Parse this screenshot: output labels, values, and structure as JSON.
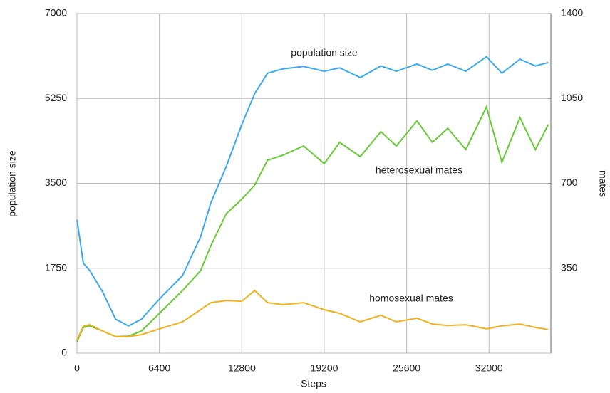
{
  "chart_data": {
    "type": "line",
    "xlabel": "Steps",
    "ylabel": "population size",
    "y2label": "mates",
    "x": [
      0,
      500,
      1000,
      2000,
      3000,
      4000,
      5000,
      6400,
      8200,
      9600,
      10400,
      11600,
      12800,
      13800,
      14800,
      16000,
      17600,
      19200,
      20400,
      22000,
      23600,
      24800,
      26400,
      27600,
      28800,
      30200,
      31800,
      33000,
      34400,
      35600,
      36600
    ],
    "series": [
      {
        "name": "population size",
        "color": "#3aaaee",
        "axis": "y",
        "values": [
          2750,
          1850,
          1700,
          1260,
          700,
          560,
          700,
          1115,
          1600,
          2400,
          3100,
          3850,
          4710,
          5350,
          5770,
          5860,
          5910,
          5810,
          5880,
          5680,
          5920,
          5810,
          5960,
          5830,
          5960,
          5810,
          6110,
          5770,
          6060,
          5920,
          5990
        ]
      },
      {
        "name": "heterosexual mates",
        "color": "#66cc33",
        "axis": "y2",
        "values": [
          47,
          106,
          112,
          91,
          68,
          70,
          91,
          164,
          258,
          340,
          443,
          575,
          634,
          693,
          795,
          816,
          854,
          781,
          869,
          810,
          913,
          854,
          957,
          869,
          927,
          839,
          1015,
          787,
          971,
          839,
          942
        ]
      },
      {
        "name": "homosexual mates",
        "color": "#f0b020",
        "axis": "y2",
        "values": [
          53,
          112,
          117,
          91,
          68,
          68,
          76,
          100,
          129,
          179,
          208,
          217,
          214,
          258,
          208,
          200,
          208,
          179,
          164,
          129,
          156,
          129,
          144,
          120,
          114,
          117,
          100,
          112,
          120,
          106,
          97
        ]
      }
    ],
    "xlim": [
      0,
      36800
    ],
    "xticks": [
      0,
      6400,
      12800,
      19200,
      25600,
      32000
    ],
    "ylim": [
      0,
      7000
    ],
    "yticks": [
      0,
      1750,
      3500,
      5250,
      7000
    ],
    "y2lim": [
      0,
      1400
    ],
    "y2ticks": [
      350,
      700,
      1050,
      1400
    ],
    "grid": true
  }
}
